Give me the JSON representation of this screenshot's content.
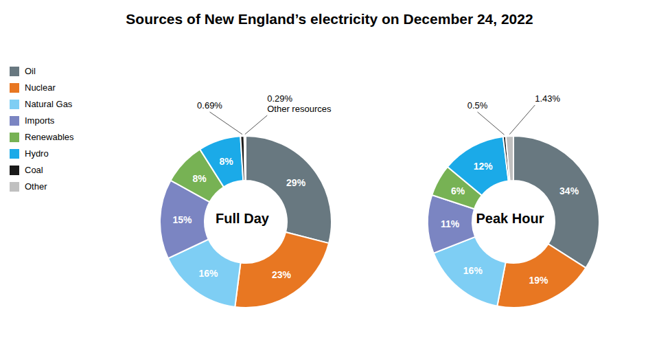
{
  "title": "Sources of New England’s electricity on December 24, 2022",
  "legend": "upper left",
  "chart_data": [
    {
      "type": "pie",
      "title": "Full Day",
      "categories": [
        "Oil",
        "Nuclear",
        "Natural Gas",
        "Imports",
        "Renewables",
        "Hydro",
        "Coal",
        "Other"
      ],
      "values": [
        29,
        23,
        16,
        15,
        8,
        8,
        0.69,
        0.29
      ],
      "value_labels": [
        "29%",
        "23%",
        "16%",
        "15%",
        "8%",
        "8%",
        "0.69%",
        "0.29%"
      ],
      "colors": [
        "#687880",
        "#e87722",
        "#7ecef4",
        "#7b85c2",
        "#77b254",
        "#1baae8",
        "#1a1a1a",
        "#c0c0c0"
      ],
      "data_labels": true,
      "annotations": [
        {
          "category": "Other",
          "label": "Other resources"
        }
      ]
    },
    {
      "type": "pie",
      "title": "Peak Hour",
      "categories": [
        "Oil",
        "Nuclear",
        "Natural Gas",
        "Imports",
        "Renewables",
        "Hydro",
        "Coal",
        "Other"
      ],
      "values": [
        34,
        19,
        16,
        11,
        6,
        12,
        0.5,
        1.43
      ],
      "value_labels": [
        "34%",
        "19%",
        "16%",
        "11%",
        "6%",
        "12%",
        "0.5%",
        "1.43%"
      ],
      "colors": [
        "#687880",
        "#e87722",
        "#7ecef4",
        "#7b85c2",
        "#77b254",
        "#1baae8",
        "#1a1a1a",
        "#c0c0c0"
      ],
      "data_labels": true,
      "annotations": []
    }
  ]
}
